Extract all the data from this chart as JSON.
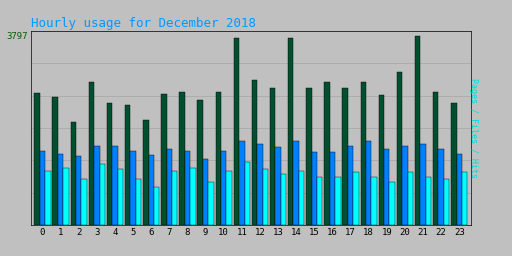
{
  "title": "Hourly usage for December 2018",
  "title_color": "#0099FF",
  "title_fontsize": 9,
  "background_color": "#C0C0C0",
  "plot_bg_color": "#C0C0C0",
  "ylabel_right": "Pages / Files / Hits",
  "ylabel_right_color": "#00DDDD",
  "ytick_label": "3797",
  "ytick_color": "#006000",
  "hours": [
    0,
    1,
    2,
    3,
    4,
    5,
    6,
    7,
    8,
    9,
    10,
    11,
    12,
    13,
    14,
    15,
    16,
    17,
    18,
    19,
    20,
    21,
    22,
    23
  ],
  "green_bars": [
    2650,
    2580,
    2080,
    2880,
    2460,
    2420,
    2120,
    2640,
    2680,
    2520,
    2680,
    3750,
    2920,
    2760,
    3750,
    2760,
    2870,
    2760,
    2870,
    2620,
    3080,
    3797,
    2680,
    2460
  ],
  "blue_bars": [
    1480,
    1430,
    1380,
    1580,
    1580,
    1480,
    1400,
    1530,
    1480,
    1330,
    1480,
    1680,
    1620,
    1570,
    1680,
    1470,
    1470,
    1580,
    1680,
    1520,
    1580,
    1630,
    1520,
    1420
  ],
  "cyan_bars": [
    1080,
    1150,
    930,
    1230,
    1130,
    930,
    760,
    1080,
    1150,
    870,
    1080,
    1260,
    1130,
    1020,
    1080,
    970,
    970,
    1060,
    970,
    870,
    1060,
    970,
    920,
    1060
  ],
  "green_color": "#005030",
  "blue_color": "#0080FF",
  "cyan_color": "#00FFFF",
  "ylim": [
    0,
    3900
  ],
  "bar_width": 0.3,
  "grid_color": "#AAAAAA",
  "grid_lines_y": [
    650,
    1300,
    1950,
    2600,
    3250,
    3900
  ]
}
